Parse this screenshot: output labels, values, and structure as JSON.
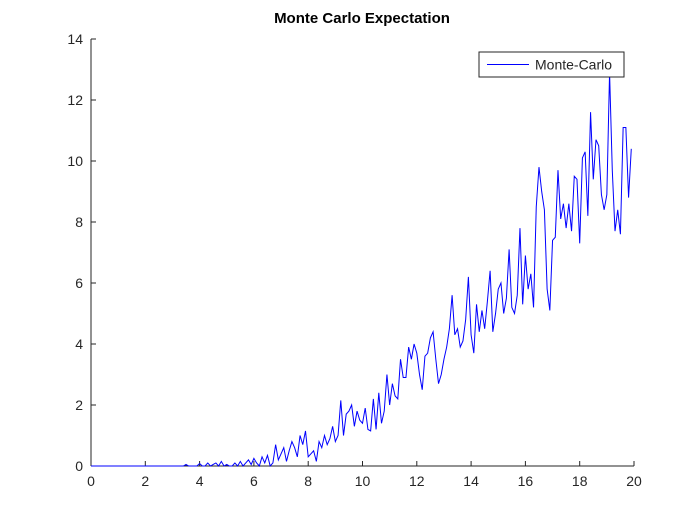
{
  "chart_data": {
    "type": "line",
    "title": "Monte Carlo Expectation",
    "x": [
      0,
      0.1,
      0.2,
      0.3,
      0.4,
      0.5,
      0.6,
      0.7,
      0.8,
      0.9,
      1,
      1.1,
      1.2,
      1.3,
      1.4,
      1.5,
      1.6,
      1.7,
      1.8,
      1.9,
      2,
      2.1,
      2.2,
      2.3,
      2.4,
      2.5,
      2.6,
      2.7,
      2.8,
      2.9,
      3,
      3.1,
      3.2,
      3.3,
      3.4,
      3.5,
      3.6,
      3.7,
      3.8,
      3.9,
      4,
      4.1,
      4.2,
      4.3,
      4.4,
      4.5,
      4.6,
      4.7,
      4.8,
      4.9,
      5,
      5.1,
      5.2,
      5.3,
      5.4,
      5.5,
      5.6,
      5.7,
      5.8,
      5.9,
      6,
      6.1,
      6.2,
      6.3,
      6.4,
      6.5,
      6.6,
      6.7,
      6.8,
      6.9,
      7,
      7.1,
      7.2,
      7.3,
      7.4,
      7.5,
      7.6,
      7.7,
      7.8,
      7.9,
      8,
      8.1,
      8.2,
      8.3,
      8.4,
      8.5,
      8.6,
      8.7,
      8.8,
      8.9,
      9,
      9.1,
      9.2,
      9.3,
      9.4,
      9.5,
      9.6,
      9.7,
      9.8,
      9.9,
      10,
      10.1,
      10.2,
      10.3,
      10.4,
      10.5,
      10.6,
      10.7,
      10.8,
      10.9,
      11,
      11.1,
      11.2,
      11.3,
      11.4,
      11.5,
      11.6,
      11.7,
      11.8,
      11.9,
      12,
      12.1,
      12.2,
      12.3,
      12.4,
      12.5,
      12.6,
      12.7,
      12.8,
      12.9,
      13,
      13.1,
      13.2,
      13.3,
      13.4,
      13.5,
      13.6,
      13.7,
      13.8,
      13.9,
      14,
      14.1,
      14.2,
      14.3,
      14.4,
      14.5,
      14.6,
      14.7,
      14.8,
      14.9,
      15,
      15.1,
      15.2,
      15.3,
      15.4,
      15.5,
      15.6,
      15.7,
      15.8,
      15.9,
      16,
      16.1,
      16.2,
      16.3,
      16.4,
      16.5,
      16.6,
      16.7,
      16.8,
      16.9,
      17,
      17.1,
      17.2,
      17.3,
      17.4,
      17.5,
      17.6,
      17.7,
      17.8,
      17.9,
      18,
      18.1,
      18.2,
      18.3,
      18.4,
      18.5,
      18.6,
      18.7,
      18.8,
      18.9,
      19,
      19.1,
      19.2,
      19.3,
      19.4,
      19.5,
      19.6,
      19.7,
      19.8,
      19.9
    ],
    "series": [
      {
        "name": "Monte-Carlo",
        "color": "#0000ff",
        "values": [
          0,
          0,
          0,
          0,
          0,
          0,
          0,
          0,
          0,
          0,
          0,
          0,
          0,
          0,
          0,
          0,
          0,
          0,
          0,
          0,
          0,
          0,
          0,
          0,
          0,
          0,
          0,
          0,
          0,
          0,
          0,
          0,
          0,
          0,
          0,
          0.05,
          0,
          0,
          0,
          0,
          0.08,
          0,
          0,
          0.1,
          0,
          0.05,
          0.1,
          0,
          0.15,
          0,
          0.05,
          0,
          0,
          0.1,
          0,
          0.15,
          0,
          0.1,
          0.2,
          0.05,
          0.25,
          0.1,
          0,
          0.3,
          0.1,
          0.35,
          0,
          0.1,
          0.7,
          0.2,
          0.4,
          0.6,
          0.15,
          0.5,
          0.8,
          0.6,
          0.3,
          1.0,
          0.7,
          1.15,
          0.3,
          0.4,
          0.5,
          0.15,
          0.8,
          0.6,
          1.0,
          0.7,
          0.9,
          1.3,
          0.8,
          1.0,
          2.15,
          1.0,
          1.7,
          1.8,
          2.0,
          1.3,
          1.8,
          1.5,
          1.4,
          1.9,
          1.2,
          1.15,
          2.2,
          1.2,
          2.4,
          1.4,
          1.8,
          3.0,
          2.0,
          2.7,
          2.3,
          2.2,
          3.5,
          2.9,
          2.9,
          3.9,
          3.5,
          4.0,
          3.7,
          3.0,
          2.5,
          3.6,
          3.7,
          4.2,
          4.4,
          3.5,
          2.7,
          3.0,
          3.5,
          3.9,
          4.5,
          5.6,
          4.3,
          4.5,
          3.9,
          4.1,
          4.8,
          6.2,
          4.3,
          3.7,
          5.3,
          4.4,
          5.1,
          4.5,
          5.4,
          6.4,
          4.4,
          5.0,
          5.8,
          6.0,
          5.0,
          5.5,
          7.1,
          5.2,
          5.0,
          5.6,
          7.8,
          5.3,
          6.9,
          5.8,
          6.3,
          5.2,
          8.5,
          9.8,
          9.0,
          8.4,
          5.8,
          5.1,
          7.4,
          7.5,
          9.7,
          8.1,
          8.6,
          7.8,
          8.6,
          7.7,
          9.5,
          9.4,
          7.3,
          10.1,
          10.3,
          8.2,
          11.6,
          9.4,
          10.7,
          10.5,
          8.9,
          8.4,
          8.9,
          12.9,
          9.7,
          7.7,
          8.4,
          7.6,
          11.1,
          11.1,
          8.8,
          10.4
        ]
      }
    ],
    "xlim": [
      0,
      20
    ],
    "xticks": [
      0,
      2,
      4,
      6,
      8,
      10,
      12,
      14,
      16,
      18,
      20
    ],
    "ylim": [
      0,
      14
    ],
    "yticks": [
      0,
      2,
      4,
      6,
      8,
      10,
      12,
      14
    ],
    "legend": "upper right"
  }
}
